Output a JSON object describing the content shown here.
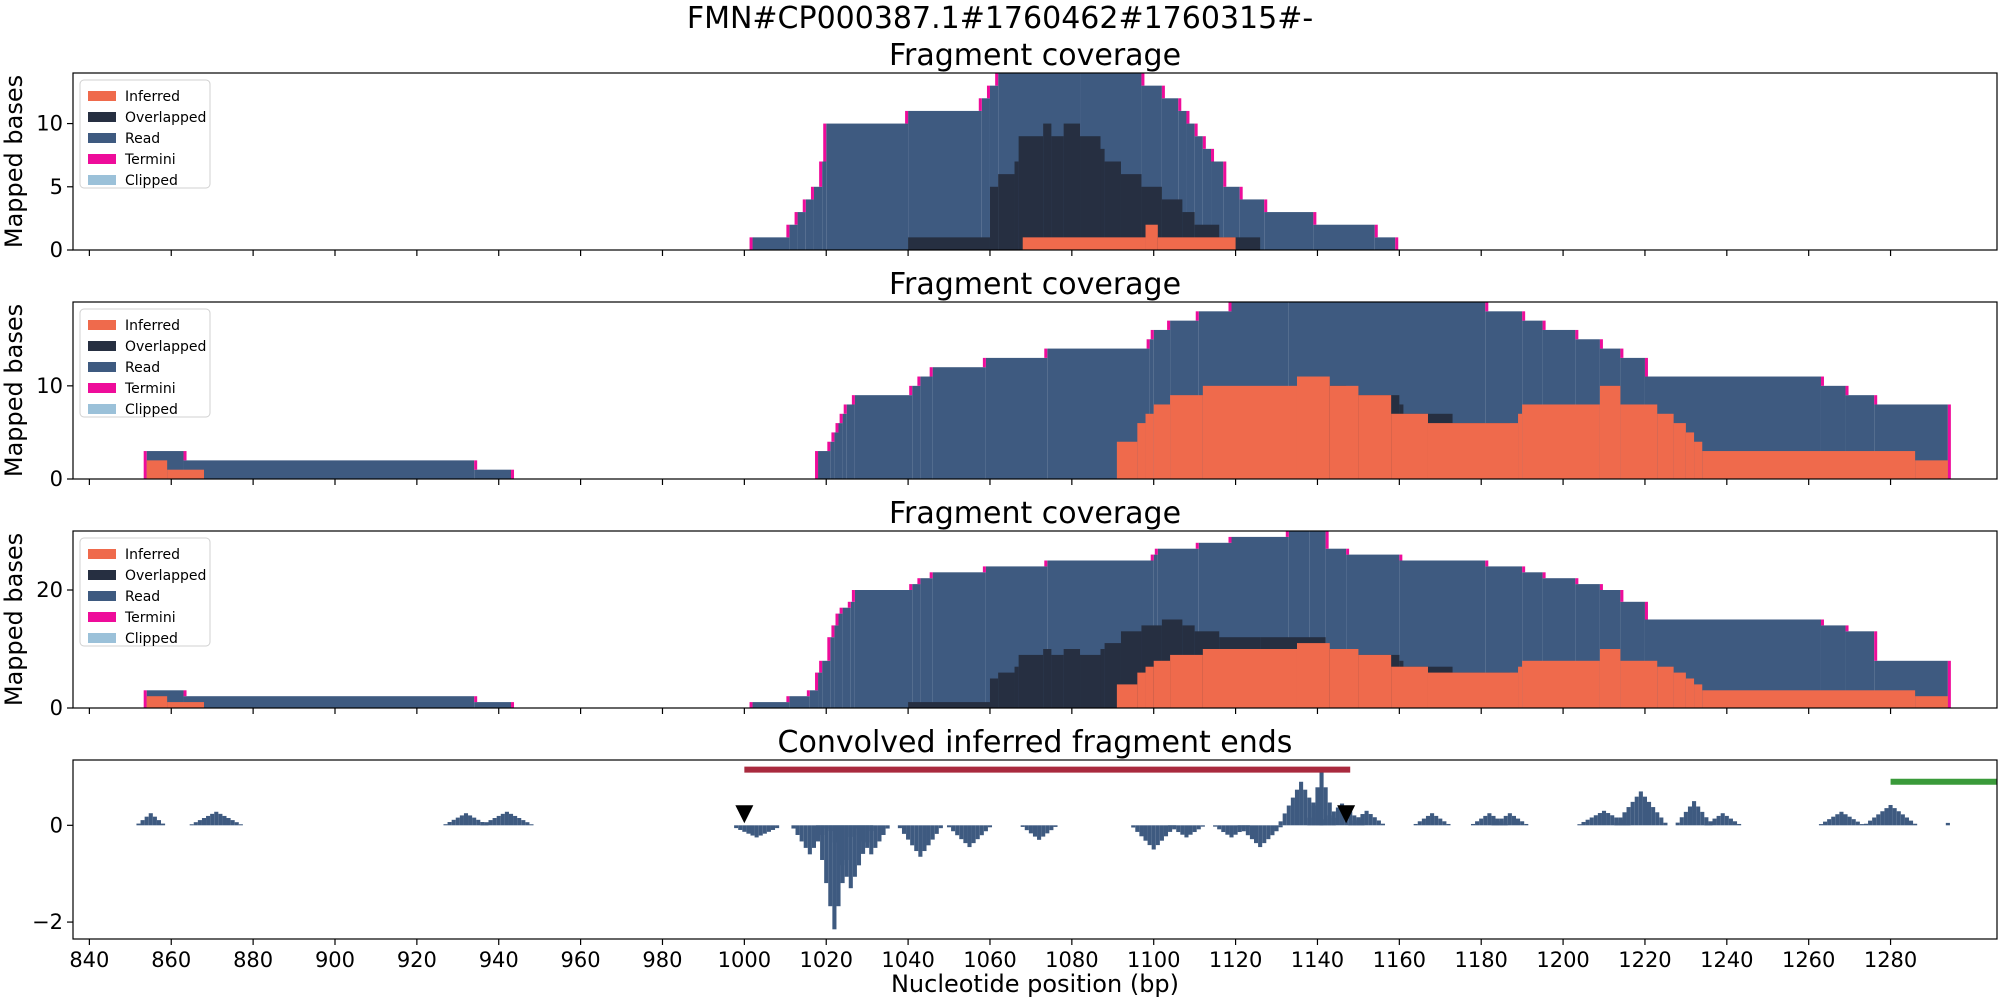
{
  "figure": {
    "suptitle": "FMN#CP000387.1#1760462#1760315#-",
    "xlabel": "Nucleotide position (bp)",
    "xlim": [
      836,
      1306
    ],
    "xticks": [
      840,
      860,
      880,
      900,
      920,
      940,
      960,
      980,
      1000,
      1020,
      1040,
      1060,
      1080,
      1100,
      1120,
      1140,
      1160,
      1180,
      1200,
      1220,
      1240,
      1260,
      1280
    ]
  },
  "colors": {
    "inferred": "#ef6a4c",
    "overlapped": "#262f41",
    "read": "#3e5a80",
    "termini": "#ee0c9a",
    "clipped": "#9bc1d9",
    "convolved": "#3e5a80",
    "red_bar": "#a92a3e",
    "green_bar": "#3a9a3a"
  },
  "legend": [
    "Inferred",
    "Overlapped",
    "Read",
    "Termini",
    "Clipped"
  ],
  "chart_data": [
    {
      "type": "area",
      "title": "Fragment coverage",
      "ylabel": "Mapped bases",
      "ylim": [
        0,
        14
      ],
      "yticks": [
        0,
        5,
        10
      ],
      "legend_position": "top-left",
      "series": [
        {
          "name": "Read",
          "steps": [
            [
              1002,
              1
            ],
            [
              1011,
              2
            ],
            [
              1013,
              3
            ],
            [
              1015,
              4
            ],
            [
              1017,
              5
            ],
            [
              1019,
              7
            ],
            [
              1020,
              10
            ],
            [
              1040,
              11
            ],
            [
              1058,
              12
            ],
            [
              1060,
              13
            ],
            [
              1062,
              14
            ],
            [
              1082,
              14
            ],
            [
              1097,
              13
            ],
            [
              1102,
              12
            ],
            [
              1106,
              11
            ],
            [
              1108,
              10
            ],
            [
              1110,
              9
            ],
            [
              1112,
              8
            ],
            [
              1114,
              7
            ],
            [
              1117,
              5
            ],
            [
              1121,
              4
            ],
            [
              1127,
              3
            ],
            [
              1139,
              2
            ],
            [
              1154,
              1
            ],
            [
              1159,
              0
            ]
          ]
        },
        {
          "name": "Overlapped",
          "steps": [
            [
              1040,
              1
            ],
            [
              1060,
              5
            ],
            [
              1062,
              6
            ],
            [
              1066,
              7
            ],
            [
              1067,
              9
            ],
            [
              1073,
              10
            ],
            [
              1075,
              9
            ],
            [
              1078,
              10
            ],
            [
              1082,
              9
            ],
            [
              1087,
              8
            ],
            [
              1088,
              7
            ],
            [
              1092,
              6
            ],
            [
              1097,
              5
            ],
            [
              1102,
              4
            ],
            [
              1107,
              3
            ],
            [
              1110,
              2
            ],
            [
              1116,
              1
            ],
            [
              1126,
              0
            ]
          ]
        },
        {
          "name": "Inferred",
          "steps": [
            [
              1068,
              1
            ],
            [
              1098,
              2
            ],
            [
              1101,
              1
            ],
            [
              1120,
              0
            ]
          ]
        }
      ]
    },
    {
      "type": "area",
      "title": "Fragment coverage",
      "ylabel": "Mapped bases",
      "ylim": [
        0,
        19
      ],
      "yticks": [
        0,
        10
      ],
      "legend_position": "top-left",
      "series": [
        {
          "name": "Read",
          "steps": [
            [
              854,
              3
            ],
            [
              863,
              2
            ],
            [
              934,
              1
            ],
            [
              943,
              0
            ],
            [
              1000,
              0
            ],
            [
              1018,
              3
            ],
            [
              1021,
              4
            ],
            [
              1022,
              5
            ],
            [
              1023,
              6
            ],
            [
              1024,
              7
            ],
            [
              1025,
              8
            ],
            [
              1027,
              9
            ],
            [
              1041,
              10
            ],
            [
              1043,
              11
            ],
            [
              1046,
              12
            ],
            [
              1059,
              13
            ],
            [
              1074,
              14
            ],
            [
              1099,
              15
            ],
            [
              1100,
              16
            ],
            [
              1104,
              17
            ],
            [
              1111,
              18
            ],
            [
              1119,
              19
            ],
            [
              1133,
              19
            ],
            [
              1181,
              18
            ],
            [
              1190,
              17
            ],
            [
              1195,
              16
            ],
            [
              1203,
              15
            ],
            [
              1209,
              14
            ],
            [
              1214,
              13
            ],
            [
              1220,
              11
            ],
            [
              1263,
              10
            ],
            [
              1269,
              9
            ],
            [
              1276,
              8
            ],
            [
              1294,
              0
            ]
          ]
        },
        {
          "name": "Overlapped",
          "steps": [
            [
              1142,
              10
            ],
            [
              1147,
              9
            ],
            [
              1160,
              8
            ],
            [
              1161,
              7
            ],
            [
              1173,
              6
            ],
            [
              1187,
              0
            ]
          ]
        },
        {
          "name": "Inferred",
          "steps": [
            [
              854,
              2
            ],
            [
              859,
              1
            ],
            [
              868,
              0
            ],
            [
              1091,
              4
            ],
            [
              1096,
              6
            ],
            [
              1098,
              7
            ],
            [
              1100,
              8
            ],
            [
              1104,
              9
            ],
            [
              1112,
              10
            ],
            [
              1135,
              11
            ],
            [
              1143,
              10
            ],
            [
              1150,
              9
            ],
            [
              1158,
              7
            ],
            [
              1167,
              6
            ],
            [
              1189,
              7
            ],
            [
              1190,
              8
            ],
            [
              1209,
              10
            ],
            [
              1214,
              8
            ],
            [
              1223,
              7
            ],
            [
              1227,
              6
            ],
            [
              1230,
              5
            ],
            [
              1232,
              4
            ],
            [
              1234,
              3
            ],
            [
              1286,
              2
            ],
            [
              1294,
              0
            ]
          ]
        }
      ]
    },
    {
      "type": "area",
      "title": "Fragment coverage",
      "ylabel": "Mapped bases",
      "ylim": [
        0,
        30
      ],
      "yticks": [
        0,
        20
      ],
      "legend_position": "top-left",
      "series": [
        {
          "name": "Read",
          "steps": [
            [
              854,
              3
            ],
            [
              863,
              2
            ],
            [
              934,
              1
            ],
            [
              943,
              0
            ],
            [
              1002,
              1
            ],
            [
              1011,
              2
            ],
            [
              1016,
              3
            ],
            [
              1018,
              6
            ],
            [
              1019,
              8
            ],
            [
              1021,
              12
            ],
            [
              1022,
              14
            ],
            [
              1023,
              16
            ],
            [
              1024,
              17
            ],
            [
              1026,
              18
            ],
            [
              1027,
              20
            ],
            [
              1041,
              21
            ],
            [
              1043,
              22
            ],
            [
              1046,
              23
            ],
            [
              1059,
              24
            ],
            [
              1074,
              25
            ],
            [
              1100,
              26
            ],
            [
              1101,
              27
            ],
            [
              1111,
              28
            ],
            [
              1119,
              29
            ],
            [
              1133,
              30
            ],
            [
              1138,
              31
            ],
            [
              1142,
              27
            ],
            [
              1147,
              26
            ],
            [
              1160,
              25
            ],
            [
              1181,
              24
            ],
            [
              1190,
              23
            ],
            [
              1195,
              22
            ],
            [
              1203,
              21
            ],
            [
              1209,
              20
            ],
            [
              1214,
              18
            ],
            [
              1220,
              15
            ],
            [
              1263,
              14
            ],
            [
              1269,
              13
            ],
            [
              1276,
              8
            ],
            [
              1294,
              0
            ]
          ]
        },
        {
          "name": "Overlapped",
          "steps": [
            [
              1040,
              1
            ],
            [
              1060,
              5
            ],
            [
              1062,
              6
            ],
            [
              1066,
              7
            ],
            [
              1067,
              9
            ],
            [
              1073,
              10
            ],
            [
              1075,
              9
            ],
            [
              1078,
              10
            ],
            [
              1082,
              9
            ],
            [
              1087,
              10
            ],
            [
              1088,
              11
            ],
            [
              1092,
              13
            ],
            [
              1097,
              14
            ],
            [
              1102,
              15
            ],
            [
              1107,
              14
            ],
            [
              1110,
              13
            ],
            [
              1116,
              12
            ],
            [
              1126,
              12
            ],
            [
              1142,
              10
            ],
            [
              1147,
              9
            ],
            [
              1160,
              8
            ],
            [
              1161,
              7
            ],
            [
              1173,
              6
            ],
            [
              1187,
              0
            ]
          ]
        },
        {
          "name": "Inferred",
          "steps": [
            [
              854,
              2
            ],
            [
              859,
              1
            ],
            [
              868,
              0
            ],
            [
              1091,
              4
            ],
            [
              1096,
              6
            ],
            [
              1098,
              7
            ],
            [
              1100,
              8
            ],
            [
              1104,
              9
            ],
            [
              1112,
              10
            ],
            [
              1135,
              11
            ],
            [
              1143,
              10
            ],
            [
              1150,
              9
            ],
            [
              1158,
              7
            ],
            [
              1167,
              6
            ],
            [
              1189,
              7
            ],
            [
              1190,
              8
            ],
            [
              1209,
              10
            ],
            [
              1214,
              8
            ],
            [
              1223,
              7
            ],
            [
              1227,
              6
            ],
            [
              1230,
              5
            ],
            [
              1232,
              4
            ],
            [
              1234,
              3
            ],
            [
              1286,
              2
            ],
            [
              1294,
              0
            ]
          ]
        }
      ]
    },
    {
      "type": "bar",
      "title": "Convolved inferred fragment ends",
      "ylabel": "",
      "ylim": [
        -2.35,
        1.35
      ],
      "yticks": [
        -2,
        0
      ],
      "bumps": [
        [
          855,
          0.25,
          3
        ],
        [
          871,
          0.28,
          6
        ],
        [
          932,
          0.25,
          5
        ],
        [
          942,
          0.28,
          6
        ],
        [
          1003,
          -0.25,
          6
        ],
        [
          1016,
          -0.6,
          4
        ],
        [
          1022,
          -2.15,
          4
        ],
        [
          1026,
          -1.3,
          5
        ],
        [
          1031,
          -0.6,
          4
        ],
        [
          1043,
          -0.65,
          5
        ],
        [
          1055,
          -0.45,
          5
        ],
        [
          1072,
          -0.3,
          4
        ],
        [
          1100,
          -0.5,
          5
        ],
        [
          1108,
          -0.25,
          4
        ],
        [
          1119,
          -0.25,
          4
        ],
        [
          1126,
          -0.45,
          5
        ],
        [
          1136,
          0.9,
          5
        ],
        [
          1141,
          1.1,
          3
        ],
        [
          1146,
          0.45,
          5
        ],
        [
          1152,
          0.3,
          4
        ],
        [
          1168,
          0.25,
          4
        ],
        [
          1182,
          0.25,
          4
        ],
        [
          1187,
          0.25,
          4
        ],
        [
          1210,
          0.3,
          6
        ],
        [
          1219,
          0.7,
          6
        ],
        [
          1232,
          0.5,
          4
        ],
        [
          1239,
          0.25,
          4
        ],
        [
          1268,
          0.28,
          5
        ],
        [
          1280,
          0.42,
          6
        ],
        [
          1294,
          0.05,
          1
        ]
      ],
      "markers": [
        1000,
        1147
      ],
      "intervals": [
        {
          "color": "red_bar",
          "start": 1000,
          "end": 1148,
          "y": 1.15
        },
        {
          "color": "green_bar",
          "start": 1280,
          "end": 1310,
          "y": 0.9
        }
      ]
    }
  ]
}
